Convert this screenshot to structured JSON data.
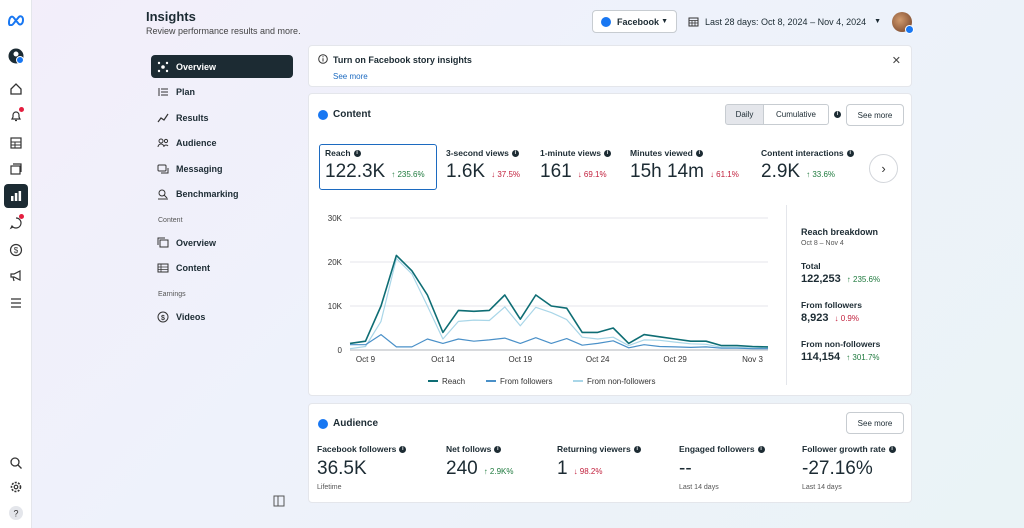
{
  "colors": {
    "reach": "#0e6d74",
    "followers": "#4a90c8",
    "non_followers": "#a9d6e8",
    "up": "#1f7a3e",
    "down": "#c2203d",
    "nav_active": "#1c2b33",
    "brand": "#1877f2"
  },
  "rail": {
    "icons": [
      "meta-logo-icon",
      "account-icon",
      "home-icon",
      "notifications-icon",
      "content-grid-icon",
      "stack-icon",
      "insights-icon",
      "messages-icon",
      "monetization-icon",
      "ads-megaphone-icon",
      "menu-icon",
      "search-icon",
      "settings-icon",
      "help-icon"
    ]
  },
  "header": {
    "title": "Insights",
    "subtitle": "Review performance results and more.",
    "platform": "Facebook",
    "date_range": "Last 28 days: Oct 8, 2024 – Nov 4, 2024"
  },
  "nav": {
    "items": [
      {
        "label": "Overview",
        "icon": "overview-icon"
      },
      {
        "label": "Plan",
        "icon": "plan-icon"
      },
      {
        "label": "Results",
        "icon": "results-icon"
      },
      {
        "label": "Audience",
        "icon": "audience-icon"
      },
      {
        "label": "Messaging",
        "icon": "messaging-icon"
      },
      {
        "label": "Benchmarking",
        "icon": "benchmarking-icon"
      }
    ],
    "content_section": "Content",
    "content_items": [
      {
        "label": "Overview",
        "icon": "content-overview-icon"
      },
      {
        "label": "Content",
        "icon": "content-table-icon"
      }
    ],
    "earnings_section": "Earnings",
    "earnings_items": [
      {
        "label": "Videos",
        "icon": "dollar-icon"
      }
    ]
  },
  "notice": {
    "title": "Turn on Facebook story insights",
    "link": "See more"
  },
  "content_card": {
    "title": "Content",
    "toggle_daily": "Daily",
    "toggle_cumulative": "Cumulative",
    "see_more": "See more",
    "metrics": [
      {
        "label": "Reach",
        "value": "122.3K",
        "change": "↑ 235.6%",
        "dir": "up"
      },
      {
        "label": "3-second views",
        "value": "1.6K",
        "change": "↓ 37.5%",
        "dir": "down"
      },
      {
        "label": "1-minute views",
        "value": "161",
        "change": "↓ 69.1%",
        "dir": "down"
      },
      {
        "label": "Minutes viewed",
        "value": "15h 14m",
        "change": "↓ 61.1%",
        "dir": "down"
      },
      {
        "label": "Content interactions",
        "value": "2.9K",
        "change": "↑ 33.6%",
        "dir": "up"
      }
    ],
    "breakdown": {
      "title": "Reach breakdown",
      "range": "Oct 8 – Nov 4",
      "rows": [
        {
          "label": "Total",
          "value": "122,253",
          "change": "↑ 235.6%",
          "dir": "up"
        },
        {
          "label": "From followers",
          "value": "8,923",
          "change": "↓ 0.9%",
          "dir": "down"
        },
        {
          "label": "From non-followers",
          "value": "114,154",
          "change": "↑ 301.7%",
          "dir": "up"
        }
      ]
    }
  },
  "chart_data": {
    "type": "line",
    "x": [
      "Oct 8",
      "Oct 9",
      "Oct 10",
      "Oct 11",
      "Oct 12",
      "Oct 13",
      "Oct 14",
      "Oct 15",
      "Oct 16",
      "Oct 17",
      "Oct 18",
      "Oct 19",
      "Oct 20",
      "Oct 21",
      "Oct 22",
      "Oct 23",
      "Oct 24",
      "Oct 25",
      "Oct 26",
      "Oct 27",
      "Oct 28",
      "Oct 29",
      "Oct 30",
      "Oct 31",
      "Nov 1",
      "Nov 2",
      "Nov 3",
      "Nov 4"
    ],
    "x_ticks": [
      "Oct 9",
      "Oct 14",
      "Oct 19",
      "Oct 24",
      "Oct 29",
      "Nov 3"
    ],
    "y_ticks": [
      "0",
      "10K",
      "20K",
      "30K"
    ],
    "ylim": [
      0,
      30000
    ],
    "series": [
      {
        "name": "Reach",
        "values": [
          1500,
          2000,
          10000,
          21500,
          18000,
          12500,
          4000,
          9000,
          8800,
          9000,
          12500,
          7000,
          12500,
          10000,
          9500,
          4000,
          4000,
          5000,
          1500,
          3500,
          3000,
          2500,
          2000,
          2000,
          1000,
          1000,
          800,
          700
        ]
      },
      {
        "name": "From followers",
        "values": [
          1200,
          1200,
          3500,
          700,
          700,
          2500,
          1500,
          2500,
          2000,
          2300,
          2700,
          1500,
          2800,
          1500,
          2600,
          1100,
          1500,
          2100,
          500,
          1200,
          800,
          700,
          600,
          700,
          400,
          400,
          300,
          300
        ]
      },
      {
        "name": "From non-followers",
        "values": [
          300,
          800,
          6500,
          20800,
          17300,
          10000,
          2500,
          6500,
          6800,
          6700,
          9800,
          5500,
          9700,
          8500,
          6900,
          2900,
          2500,
          2900,
          1000,
          2300,
          2200,
          1800,
          1400,
          1300,
          600,
          600,
          500,
          400
        ]
      }
    ],
    "legend": "bottom"
  },
  "audience_card": {
    "title": "Audience",
    "see_more": "See more",
    "metrics": [
      {
        "label": "Facebook followers",
        "value": "36.5K",
        "change": "",
        "dir": "",
        "foot": "Lifetime"
      },
      {
        "label": "Net follows",
        "value": "240",
        "change": "↑ 2.9K%",
        "dir": "up",
        "foot": ""
      },
      {
        "label": "Returning viewers",
        "value": "1",
        "change": "↓ 98.2%",
        "dir": "down",
        "foot": ""
      },
      {
        "label": "Engaged followers",
        "value": "--",
        "change": "",
        "dir": "",
        "foot": "Last 14 days"
      },
      {
        "label": "Follower growth rate",
        "value": "-27.16%",
        "change": "",
        "dir": "",
        "foot": "Last 14 days"
      }
    ]
  }
}
